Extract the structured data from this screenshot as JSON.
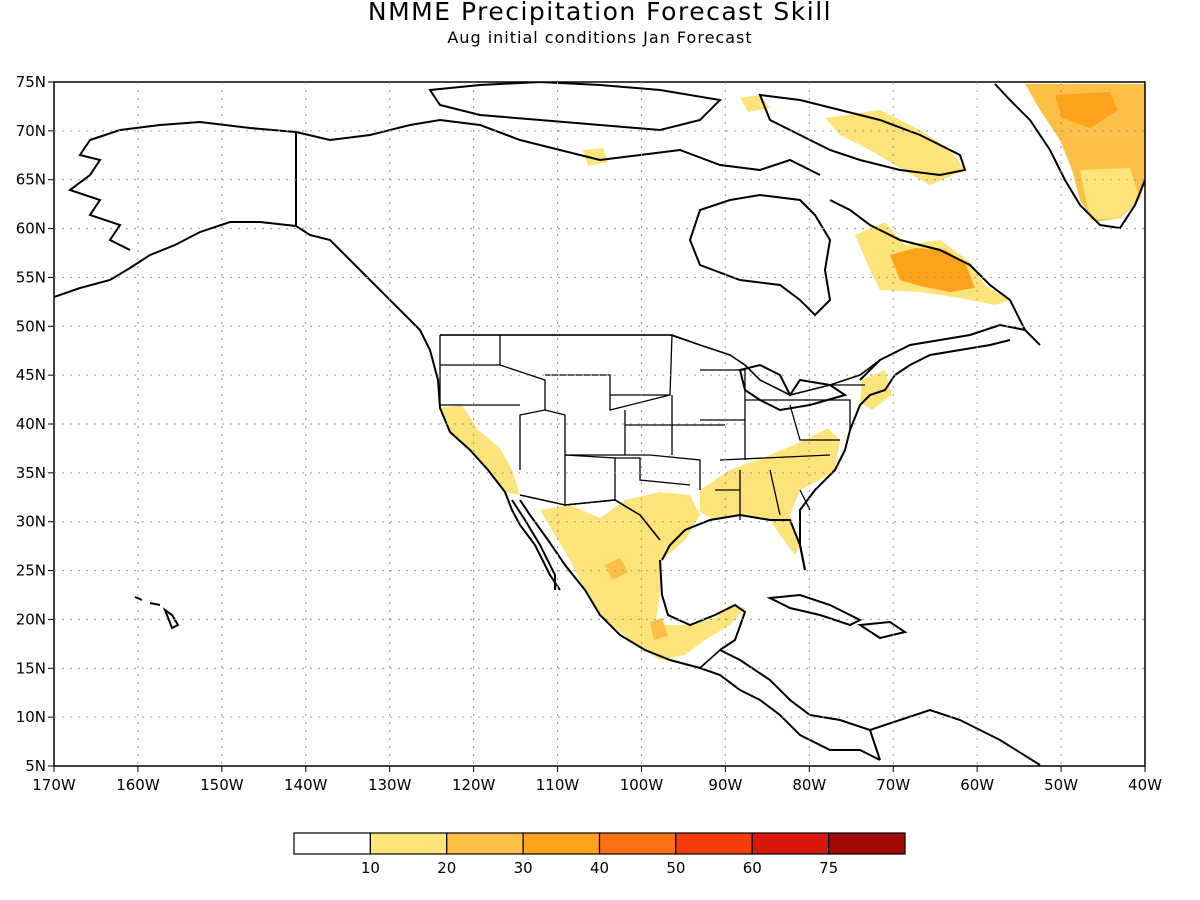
{
  "title": "NMME Precipitation Forecast Skill",
  "subtitle": "Aug initial conditions  Jan Forecast",
  "axes": {
    "lat_labels": [
      "75N",
      "70N",
      "65N",
      "60N",
      "55N",
      "50N",
      "45N",
      "40N",
      "35N",
      "30N",
      "25N",
      "20N",
      "15N",
      "10N",
      "5N"
    ],
    "lon_labels": [
      "170W",
      "160W",
      "150W",
      "140W",
      "130W",
      "120W",
      "110W",
      "100W",
      "90W",
      "80W",
      "70W",
      "60W",
      "50W",
      "40W"
    ]
  },
  "legend": {
    "labels": [
      "10",
      "20",
      "30",
      "40",
      "50",
      "60",
      "75"
    ],
    "colors": [
      "#ffffff",
      "#fde47a",
      "#fdbf45",
      "#fca21b",
      "#f97112",
      "#f43d0a",
      "#d8180a",
      "#a00a06"
    ]
  },
  "colors": {
    "skill_10_20": "#fde47a",
    "skill_20_30": "#fdbf45",
    "skill_30_40": "#fca21b"
  }
}
